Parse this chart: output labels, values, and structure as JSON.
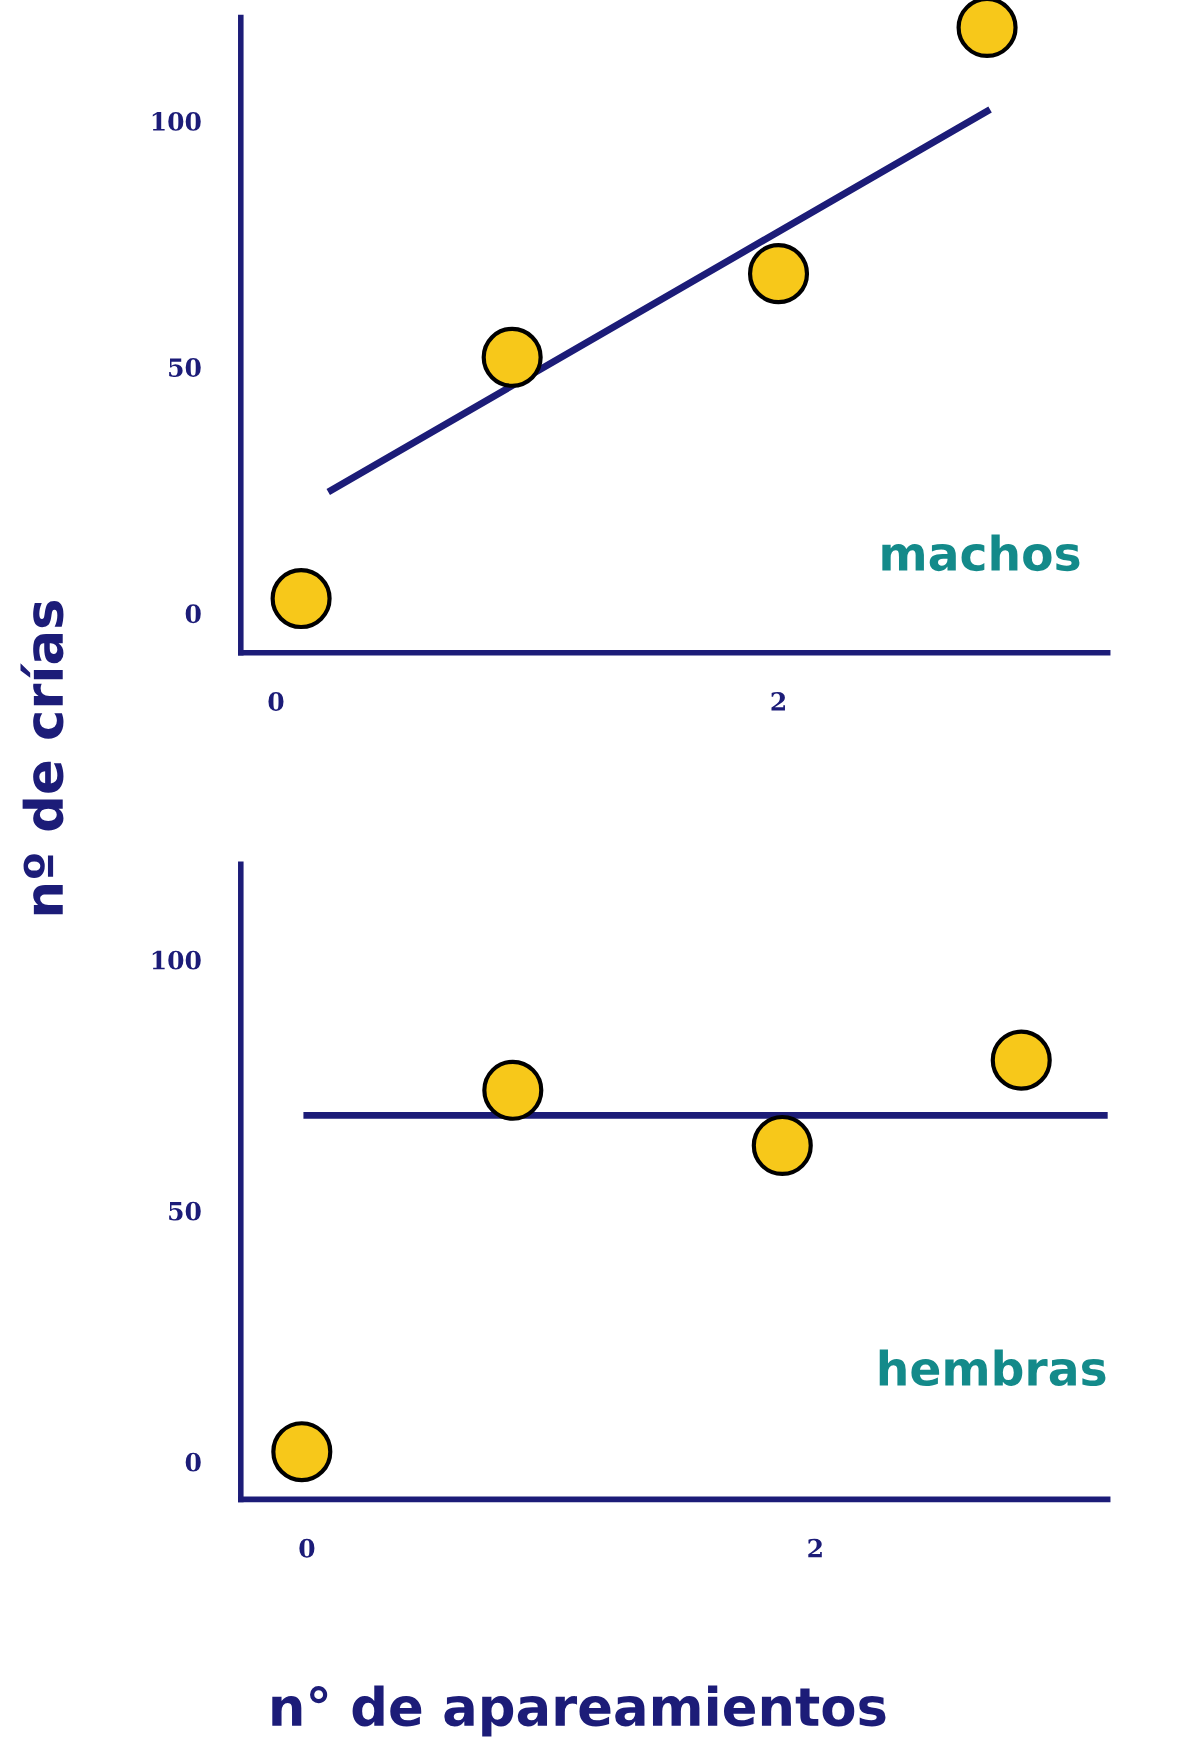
{
  "chart_data": [
    {
      "type": "scatter",
      "ylabel": "nº de crías",
      "annotations": [
        "machos"
      ],
      "xlim": [
        -0.14,
        3.31
      ],
      "ylim": [
        -8,
        121
      ],
      "xticks": [
        0,
        2
      ],
      "yticks": [
        0,
        50,
        100
      ],
      "grid": false,
      "series": [
        {
          "color": "#f7c81a",
          "marker": "circle",
          "x": [
            0.1,
            0.94,
            2.0,
            2.83
          ],
          "values": [
            3,
            52,
            69,
            119
          ]
        },
        {
          "type": "line",
          "marker": "none",
          "color": "#1c1c78",
          "x": [
            0.22,
            2.83
          ],
          "values": [
            25,
            102
          ]
        }
      ]
    },
    {
      "type": "scatter",
      "xlabel": "n° de apareamientos",
      "annotations": [
        "hembras"
      ],
      "xlim": [
        -0.26,
        3.15
      ],
      "ylim": [
        -7.5,
        119
      ],
      "xticks": [
        0,
        2
      ],
      "yticks": [
        0,
        50,
        100
      ],
      "grid": false,
      "series": [
        {
          "color": "#f7c81a",
          "marker": "circle",
          "x": [
            -0.02,
            0.81,
            1.87,
            2.81
          ],
          "values": [
            2,
            74,
            63,
            80
          ]
        },
        {
          "type": "line",
          "marker": "none",
          "color": "#1c1c78",
          "x": [
            0,
            3.15
          ],
          "values": [
            69,
            69
          ]
        }
      ]
    }
  ]
}
